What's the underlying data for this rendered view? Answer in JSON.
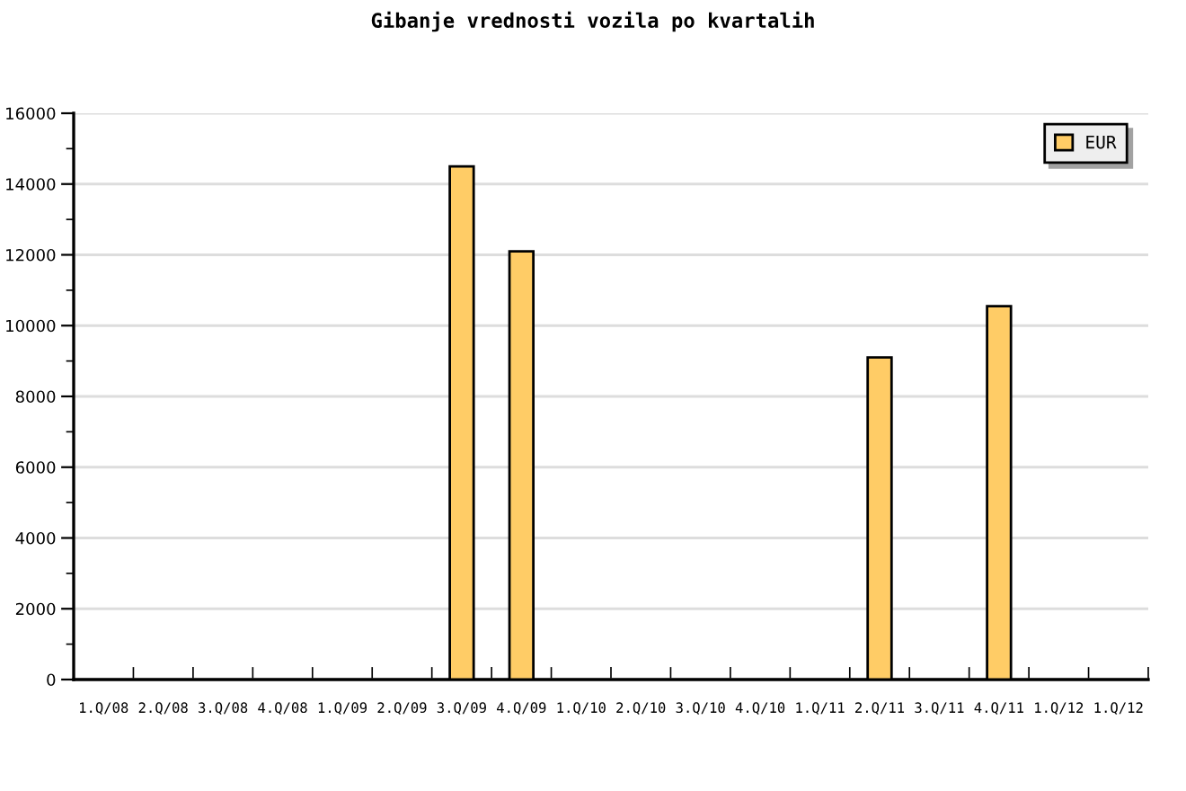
{
  "chart_data": {
    "type": "bar",
    "title": "Gibanje vrednosti vozila po kvartalih",
    "categories": [
      "1.Q/08",
      "2.Q/08",
      "3.Q/08",
      "4.Q/08",
      "1.Q/09",
      "2.Q/09",
      "3.Q/09",
      "4.Q/09",
      "1.Q/10",
      "2.Q/10",
      "3.Q/10",
      "4.Q/10",
      "1.Q/11",
      "2.Q/11",
      "3.Q/11",
      "4.Q/11",
      "1.Q/12",
      "1.Q/12"
    ],
    "series": [
      {
        "name": "EUR",
        "color": "#ffcc66",
        "values": [
          null,
          null,
          null,
          null,
          null,
          null,
          14500,
          12100,
          null,
          null,
          null,
          null,
          null,
          9100,
          null,
          10550,
          null,
          null
        ]
      }
    ],
    "ylim": [
      0,
      16000
    ],
    "yticks": [
      0,
      {
        "value": 1000,
        "label": null
      },
      2000,
      {
        "value": 3000,
        "label": null
      },
      4000,
      {
        "value": 5000,
        "label": null
      },
      6000,
      {
        "value": 7000,
        "label": null
      },
      8000,
      {
        "value": 9000,
        "label": null
      },
      10000,
      {
        "value": 11000,
        "label": null
      },
      12000,
      {
        "value": 13000,
        "label": null
      },
      14000,
      {
        "value": 15000,
        "label": null
      },
      16000
    ],
    "grid": "y",
    "legend": "top right"
  }
}
